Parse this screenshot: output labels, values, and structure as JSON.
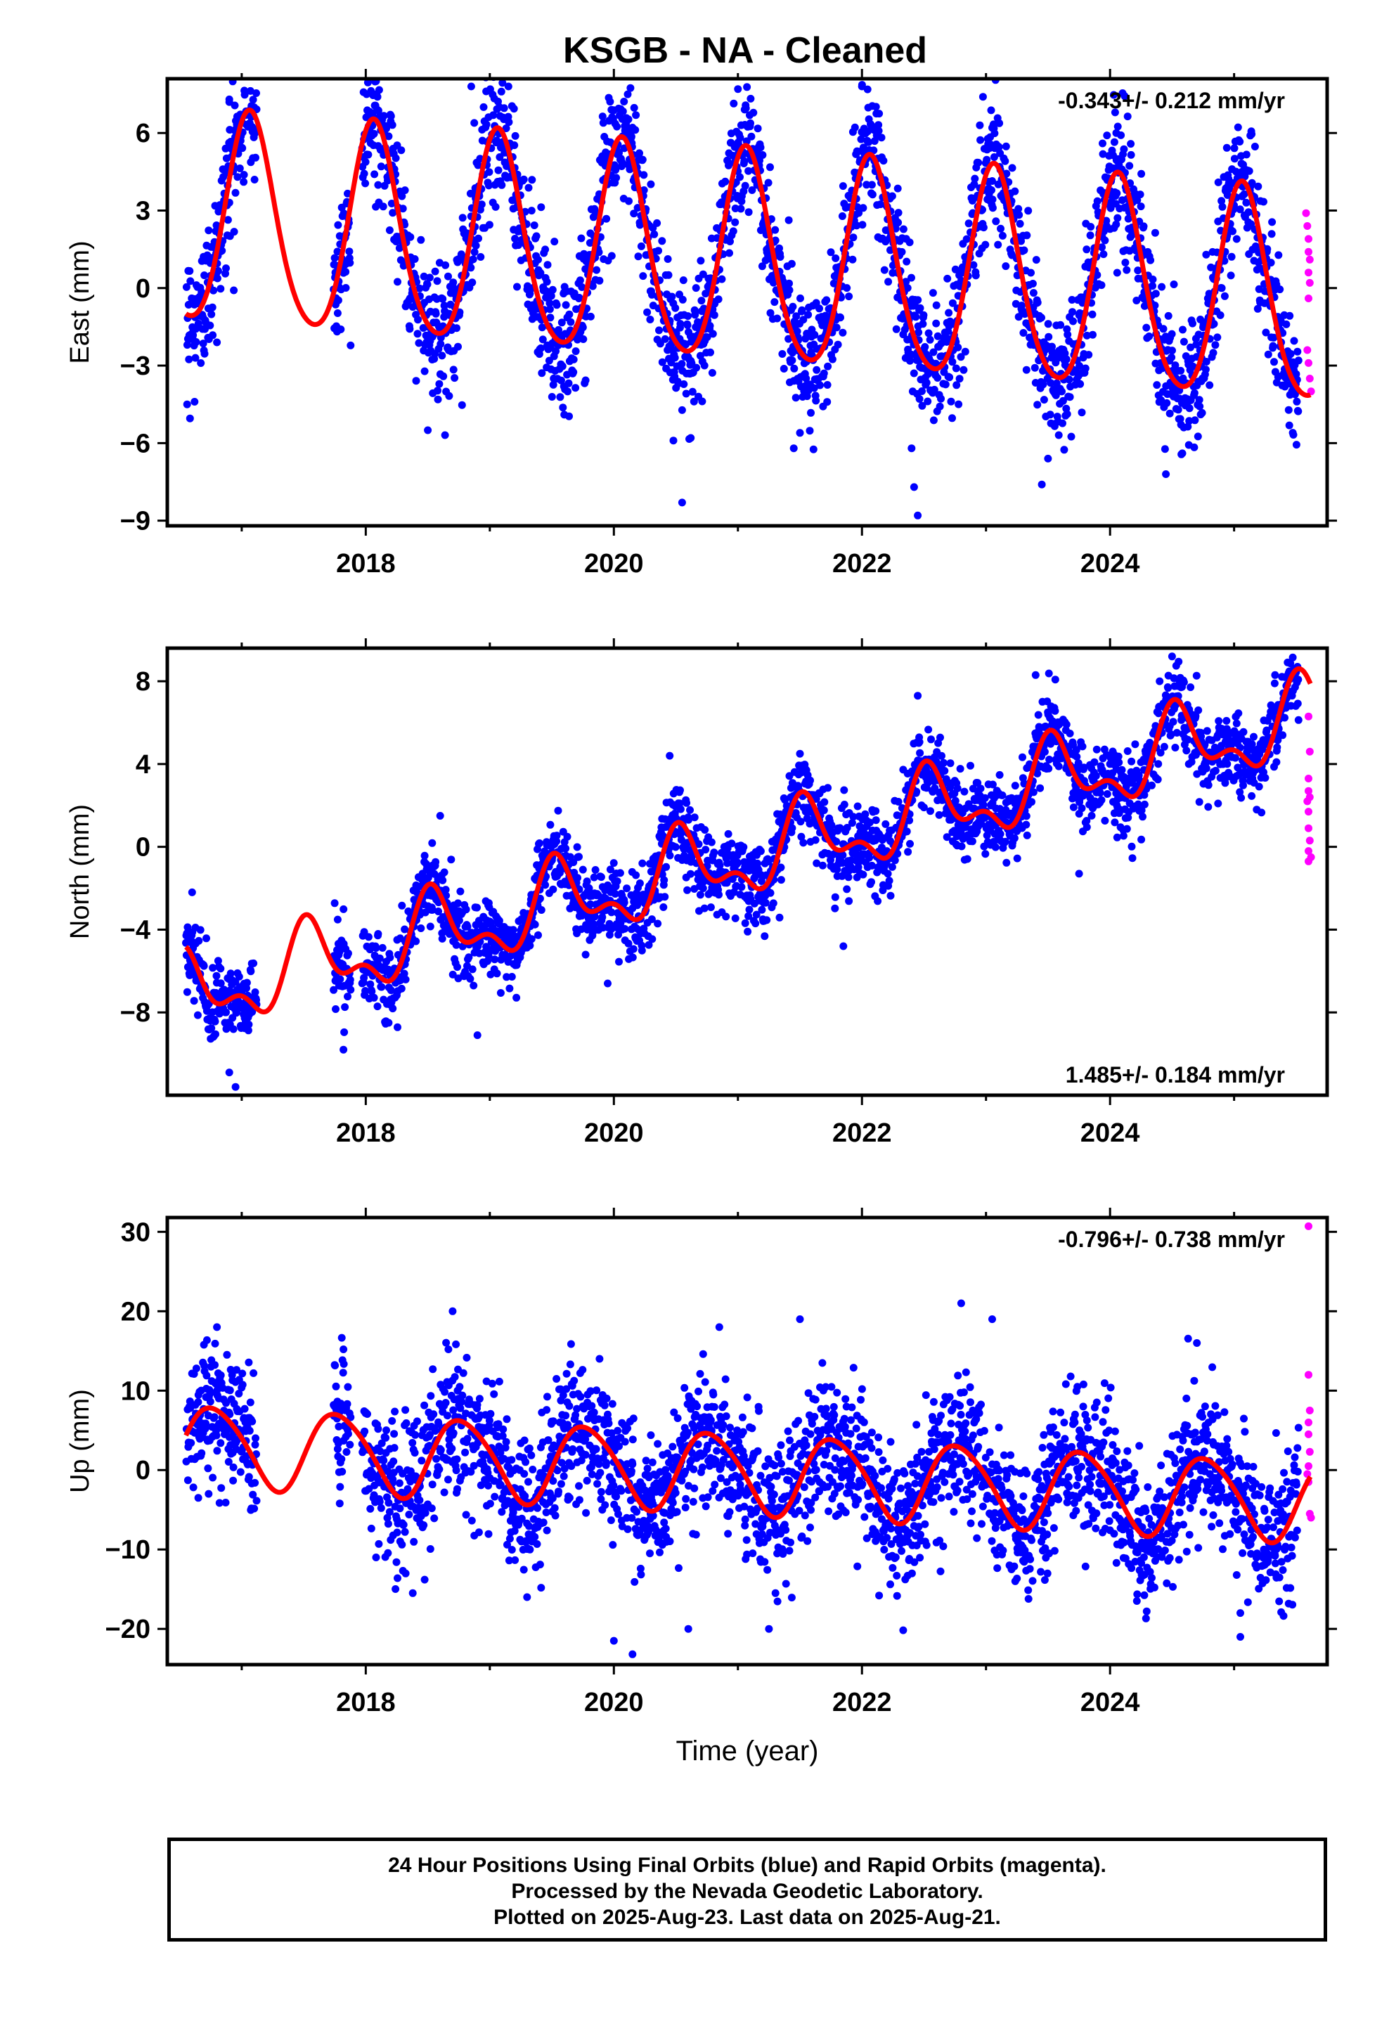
{
  "title": "KSGB  - NA - Cleaned",
  "chart_data": [
    {
      "type": "scatter",
      "ylabel": "East (mm)",
      "xlim": [
        2016.4,
        2025.75
      ],
      "ylim": [
        -9.2,
        8.1
      ],
      "yticks": [
        -9,
        -6,
        -3,
        0,
        3,
        6
      ],
      "xticks": [
        2018,
        2020,
        2022,
        2024
      ],
      "rate_text": "-0.343+/- 0.212 mm/yr",
      "rate_position": "top-right",
      "model": {
        "rate": -0.343,
        "offset": 1.0,
        "t0": 2021,
        "annual_amp": 4.05,
        "annual_phase_year": 0.07,
        "semiannual_amp": 0.5,
        "semiannual_phase_year": 0.05
      },
      "final_series": {
        "name": "Final Orbits",
        "color": "#0000ff",
        "scatter_std": 1.3,
        "gaps": [
          [
            2017.12,
            2017.74
          ],
          [
            2017.88,
            2017.97
          ]
        ],
        "start": 2016.55,
        "end": 2025.52,
        "samples": [
          [
            2016.56,
            -4.5
          ],
          [
            2016.62,
            -4.4
          ],
          [
            2016.8,
            -2.1
          ],
          [
            2016.9,
            7.3
          ],
          [
            2016.9,
            7.2
          ],
          [
            2018.05,
            5.9
          ],
          [
            2018.1,
            5.5
          ],
          [
            2018.5,
            -5.5
          ],
          [
            2018.85,
            7.8
          ],
          [
            2018.95,
            7.0
          ],
          [
            2019.15,
            7.8
          ],
          [
            2019.6,
            -4.9
          ],
          [
            2019.98,
            6.9
          ],
          [
            2020.55,
            -8.3
          ],
          [
            2020.48,
            -5.9
          ],
          [
            2020.62,
            -5.8
          ],
          [
            2021.0,
            7.7
          ],
          [
            2021.45,
            -6.2
          ],
          [
            2022.0,
            7.8
          ],
          [
            2022.4,
            -6.2
          ],
          [
            2022.42,
            -7.7
          ],
          [
            2022.45,
            -8.8
          ],
          [
            2022.95,
            6.3
          ],
          [
            2023.05,
            6.2
          ],
          [
            2023.45,
            -7.6
          ],
          [
            2023.5,
            -6.6
          ],
          [
            2024.05,
            6.0
          ],
          [
            2024.45,
            -7.2
          ]
        ]
      },
      "rapid_series": {
        "name": "Rapid Orbits",
        "color": "#ff00ff",
        "points": [
          [
            2025.58,
            2.9
          ],
          [
            2025.59,
            2.4
          ],
          [
            2025.6,
            1.9
          ],
          [
            2025.6,
            1.4
          ],
          [
            2025.61,
            1.1
          ],
          [
            2025.6,
            0.6
          ],
          [
            2025.61,
            0.2
          ],
          [
            2025.6,
            -0.4
          ],
          [
            2025.59,
            -2.4
          ],
          [
            2025.6,
            -2.9
          ],
          [
            2025.61,
            -3.5
          ],
          [
            2025.62,
            -4.0
          ]
        ]
      }
    },
    {
      "type": "scatter",
      "ylabel": "North (mm)",
      "xlim": [
        2016.4,
        2025.75
      ],
      "ylim": [
        -12.0,
        9.6
      ],
      "yticks": [
        -8,
        -4,
        0,
        4,
        8
      ],
      "xticks": [
        2018,
        2020,
        2022,
        2024
      ],
      "rate_text": "1.485+/- 0.184 mm/yr",
      "rate_position": "bottom-right",
      "model": {
        "rate": 1.485,
        "offset": -0.6,
        "t0": 2021,
        "annual_amp": 1.65,
        "annual_phase_year": 0.55,
        "semiannual_amp": 0.9,
        "semiannual_phase_year": 0.0
      },
      "final_series": {
        "name": "Final Orbits",
        "color": "#0000ff",
        "scatter_std": 0.95,
        "gaps": [
          [
            2017.12,
            2017.74
          ],
          [
            2017.88,
            2017.97
          ]
        ],
        "start": 2016.55,
        "end": 2025.52,
        "samples": [
          [
            2016.6,
            -2.2
          ],
          [
            2016.95,
            -11.6
          ],
          [
            2016.9,
            -10.9
          ],
          [
            2017.82,
            -9.8
          ],
          [
            2018.6,
            1.5
          ],
          [
            2018.9,
            -9.1
          ],
          [
            2019.95,
            -6.6
          ],
          [
            2020.45,
            4.4
          ],
          [
            2021.5,
            4.5
          ],
          [
            2021.85,
            -4.8
          ],
          [
            2022.45,
            7.3
          ],
          [
            2023.4,
            8.3
          ],
          [
            2024.5,
            9.2
          ],
          [
            2023.75,
            -1.3
          ]
        ]
      },
      "rapid_series": {
        "name": "Rapid Orbits",
        "color": "#ff00ff",
        "points": [
          [
            2025.6,
            6.3
          ],
          [
            2025.61,
            4.6
          ],
          [
            2025.6,
            3.3
          ],
          [
            2025.6,
            2.7
          ],
          [
            2025.61,
            2.4
          ],
          [
            2025.59,
            2.2
          ],
          [
            2025.6,
            1.7
          ],
          [
            2025.6,
            0.9
          ],
          [
            2025.61,
            0.3
          ],
          [
            2025.6,
            -0.2
          ],
          [
            2025.62,
            -0.5
          ],
          [
            2025.6,
            -0.7
          ]
        ]
      }
    },
    {
      "type": "scatter",
      "ylabel": "Up (mm)",
      "xlim": [
        2016.4,
        2025.75
      ],
      "ylim": [
        -24.5,
        31.8
      ],
      "yticks": [
        -20,
        -10,
        0,
        10,
        20,
        30
      ],
      "xticks": [
        2018,
        2020,
        2022,
        2024
      ],
      "xlabel": "Time (year)",
      "rate_text": "-0.796+/- 0.738 mm/yr",
      "rate_position": "top-right",
      "model": {
        "rate": -0.796,
        "offset": -0.3,
        "t0": 2021,
        "annual_amp": 5.0,
        "annual_phase_year": 0.78,
        "semiannual_amp": 0.6,
        "semiannual_phase_year": 0.1
      },
      "final_series": {
        "name": "Final Orbits",
        "color": "#0000ff",
        "scatter_std": 4.3,
        "gaps": [
          [
            2017.12,
            2017.74
          ],
          [
            2017.88,
            2017.97
          ]
        ],
        "start": 2016.55,
        "end": 2025.52,
        "samples": [
          [
            2016.8,
            18
          ],
          [
            2016.65,
            -3.5
          ],
          [
            2017.82,
            15.2
          ],
          [
            2018.7,
            20
          ],
          [
            2019.3,
            -16
          ],
          [
            2020.0,
            -21.5
          ],
          [
            2020.15,
            -23.2
          ],
          [
            2020.6,
            -20
          ],
          [
            2020.85,
            18
          ],
          [
            2021.25,
            -20
          ],
          [
            2021.5,
            19
          ],
          [
            2022.8,
            21
          ],
          [
            2023.05,
            19
          ],
          [
            2024.7,
            16
          ],
          [
            2025.05,
            -21
          ],
          [
            2025.05,
            -18
          ]
        ]
      },
      "rapid_series": {
        "name": "Rapid Orbits",
        "color": "#ff00ff",
        "points": [
          [
            2025.6,
            30.7
          ],
          [
            2025.6,
            12.0
          ],
          [
            2025.61,
            7.5
          ],
          [
            2025.6,
            6.0
          ],
          [
            2025.6,
            4.5
          ],
          [
            2025.61,
            2.3
          ],
          [
            2025.6,
            0.5
          ],
          [
            2025.59,
            -0.5
          ],
          [
            2025.6,
            -1.5
          ],
          [
            2025.61,
            -5.5
          ],
          [
            2025.62,
            -6.0
          ]
        ]
      }
    }
  ],
  "footer": {
    "line1": "24 Hour Positions Using Final Orbits (blue) and Rapid Orbits (magenta).",
    "line2": "Processed by the Nevada Geodetic Laboratory.",
    "line3": "Plotted on 2025-Aug-23. Last data on 2025-Aug-21."
  }
}
